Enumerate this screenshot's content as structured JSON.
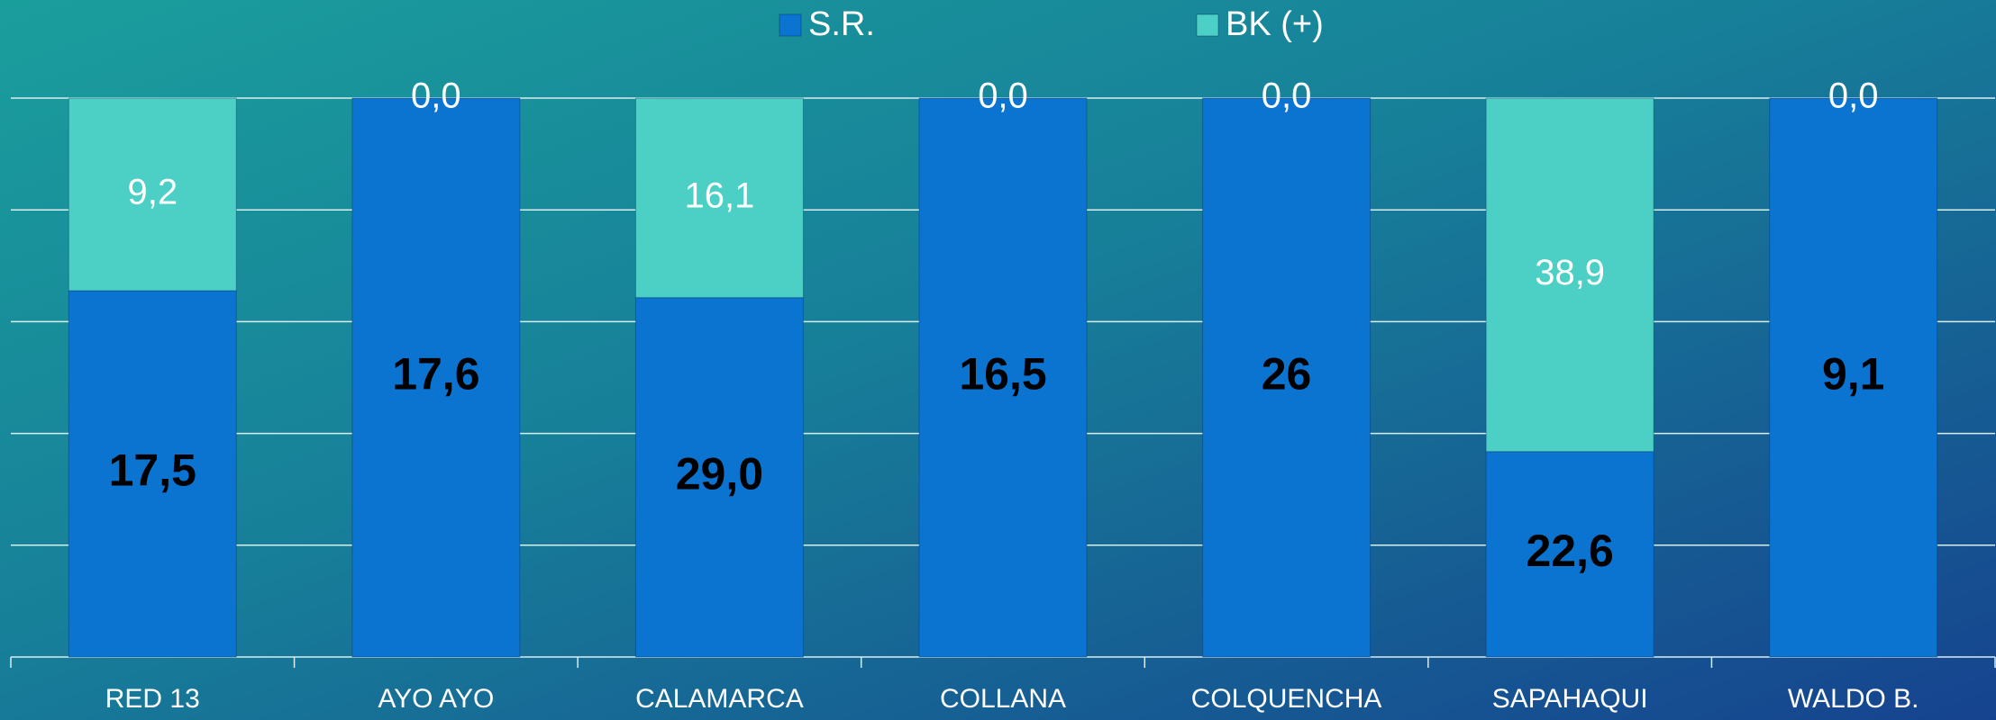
{
  "chart_data": {
    "type": "bar",
    "stacked": "percent",
    "categories": [
      "RED 13",
      "AYO AYO",
      "CALAMARCA",
      "COLLANA",
      "COLQUENCHA",
      "SAPAHAQUI",
      "WALDO B."
    ],
    "series": [
      {
        "name": "S.R.",
        "color": "#0b74d1",
        "values": [
          17.5,
          17.6,
          29.0,
          16.5,
          26,
          22.6,
          9.1
        ],
        "value_labels": [
          "17,5",
          "17,6",
          "29,0",
          "16,5",
          "26",
          "22,6",
          "9,1"
        ]
      },
      {
        "name": "BK (+)",
        "color": "#4ccfc4",
        "values": [
          9.2,
          0,
          16.1,
          0,
          0,
          38.9,
          0
        ],
        "value_labels": [
          "9,2",
          "0,0",
          "16,1",
          "0,0",
          "0,0",
          "38,9",
          "0,0"
        ]
      }
    ],
    "ylim": [
      0,
      100
    ],
    "yticks": [
      0,
      20,
      40,
      60,
      80,
      100
    ],
    "grid": true,
    "legend": "top"
  }
}
